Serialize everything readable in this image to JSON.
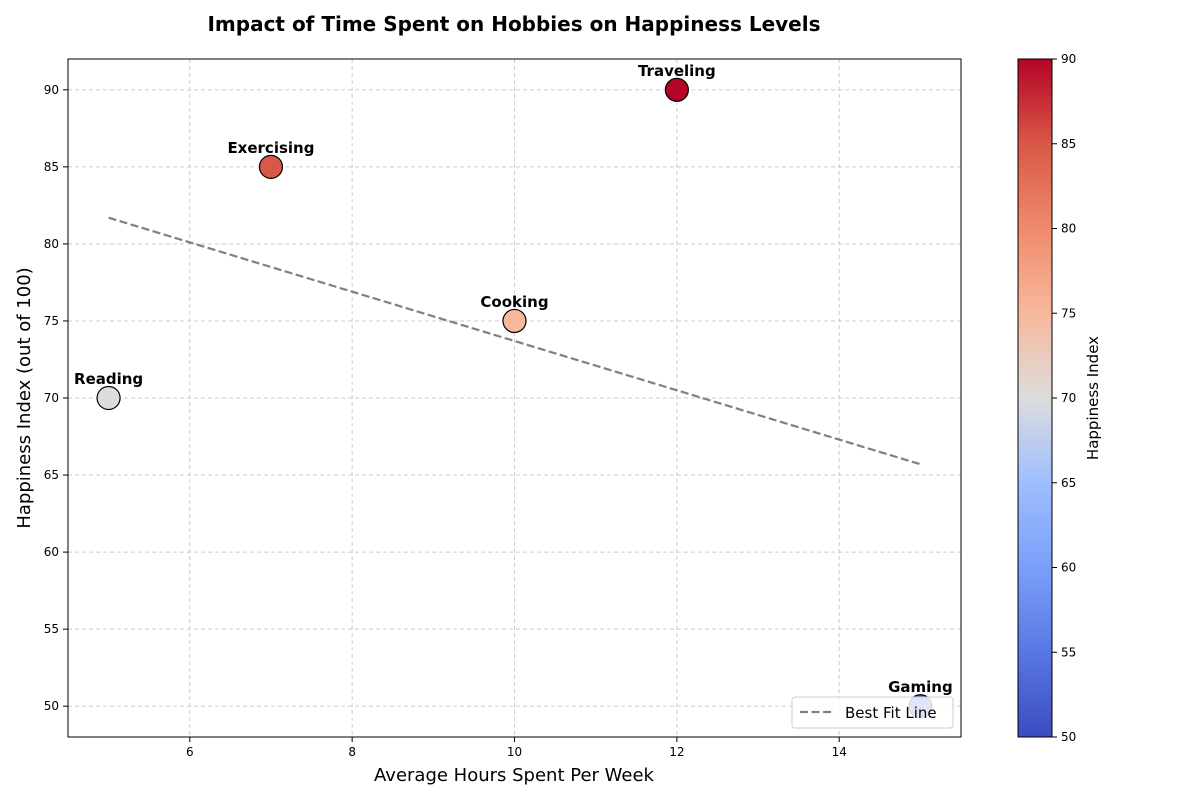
{
  "chart_data": {
    "type": "scatter",
    "title": "Impact of Time Spent on Hobbies on Happiness Levels",
    "xlabel": "Average Hours Spent Per Week",
    "ylabel": "Happiness Index (out of 100)",
    "xlim": [
      4.5,
      15.5
    ],
    "ylim": [
      48,
      92
    ],
    "xticks": [
      6,
      8,
      10,
      12,
      14
    ],
    "yticks": [
      50,
      55,
      60,
      65,
      70,
      75,
      80,
      85,
      90
    ],
    "grid": true,
    "points": [
      {
        "label": "Reading",
        "x": 5,
        "y": 70
      },
      {
        "label": "Exercising",
        "x": 7,
        "y": 85
      },
      {
        "label": "Cooking",
        "x": 10,
        "y": 75
      },
      {
        "label": "Traveling",
        "x": 12,
        "y": 90
      },
      {
        "label": "Gaming",
        "x": 15,
        "y": 50
      }
    ],
    "best_fit_line": {
      "name": "Best Fit Line",
      "style": "dashed",
      "color": "#808080",
      "start": {
        "x": 5,
        "y": 81.7
      },
      "end": {
        "x": 15,
        "y": 65.7
      }
    },
    "colorbar": {
      "label": "Happiness Index",
      "colormap": "coolwarm",
      "range": [
        50,
        90
      ],
      "ticks": [
        50,
        55,
        60,
        65,
        70,
        75,
        80,
        85,
        90
      ]
    },
    "legend": {
      "position": "lower-right",
      "entries": [
        "Best Fit Line"
      ]
    }
  }
}
